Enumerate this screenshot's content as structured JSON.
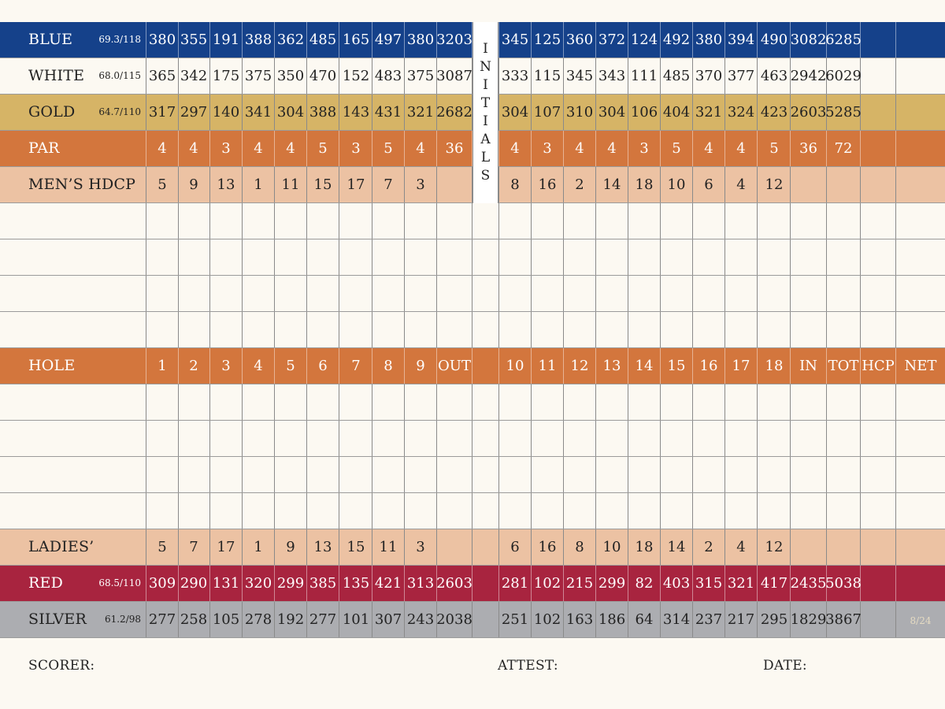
{
  "initials_label": [
    "I",
    "N",
    "I",
    "T",
    "I",
    "A",
    "L",
    "S"
  ],
  "rows": [
    {
      "key": "blue",
      "name": "BLUE",
      "rating": "69.3/118",
      "front": [
        "380",
        "355",
        "191",
        "388",
        "362",
        "485",
        "165",
        "497",
        "380"
      ],
      "out": "3203",
      "back": [
        "345",
        "125",
        "360",
        "372",
        "124",
        "492",
        "380",
        "394",
        "490"
      ],
      "in": "3082",
      "tot": "6285",
      "hcp": "",
      "net": ""
    },
    {
      "key": "white",
      "name": "WHITE",
      "rating": "68.0/115",
      "front": [
        "365",
        "342",
        "175",
        "375",
        "350",
        "470",
        "152",
        "483",
        "375"
      ],
      "out": "3087",
      "back": [
        "333",
        "115",
        "345",
        "343",
        "111",
        "485",
        "370",
        "377",
        "463"
      ],
      "in": "2942",
      "tot": "6029",
      "hcp": "",
      "net": ""
    },
    {
      "key": "gold",
      "name": "GOLD",
      "rating": "64.7/110",
      "front": [
        "317",
        "297",
        "140",
        "341",
        "304",
        "388",
        "143",
        "431",
        "321"
      ],
      "out": "2682",
      "back": [
        "304",
        "107",
        "310",
        "304",
        "106",
        "404",
        "321",
        "324",
        "423"
      ],
      "in": "2603",
      "tot": "5285",
      "hcp": "",
      "net": ""
    },
    {
      "key": "par",
      "name": "PAR",
      "rating": "",
      "front": [
        "4",
        "4",
        "3",
        "4",
        "4",
        "5",
        "3",
        "5",
        "4"
      ],
      "out": "36",
      "back": [
        "4",
        "3",
        "4",
        "4",
        "3",
        "5",
        "4",
        "4",
        "5"
      ],
      "in": "36",
      "tot": "72",
      "hcp": "",
      "net": ""
    },
    {
      "key": "hdcp",
      "name": "MEN’S HDCP",
      "rating": "",
      "front": [
        "5",
        "9",
        "13",
        "1",
        "11",
        "15",
        "17",
        "7",
        "3"
      ],
      "out": "",
      "back": [
        "8",
        "16",
        "2",
        "14",
        "18",
        "10",
        "6",
        "4",
        "12"
      ],
      "in": "",
      "tot": "",
      "hcp": "",
      "net": ""
    },
    {
      "key": "blank",
      "name": "",
      "rating": "",
      "front": [
        "",
        "",
        "",
        "",
        "",
        "",
        "",
        "",
        ""
      ],
      "out": "",
      "back": [
        "",
        "",
        "",
        "",
        "",
        "",
        "",
        "",
        ""
      ],
      "in": "",
      "tot": "",
      "hcp": "",
      "net": ""
    },
    {
      "key": "blank",
      "name": "",
      "rating": "",
      "front": [
        "",
        "",
        "",
        "",
        "",
        "",
        "",
        "",
        ""
      ],
      "out": "",
      "back": [
        "",
        "",
        "",
        "",
        "",
        "",
        "",
        "",
        ""
      ],
      "in": "",
      "tot": "",
      "hcp": "",
      "net": ""
    },
    {
      "key": "blank",
      "name": "",
      "rating": "",
      "front": [
        "",
        "",
        "",
        "",
        "",
        "",
        "",
        "",
        ""
      ],
      "out": "",
      "back": [
        "",
        "",
        "",
        "",
        "",
        "",
        "",
        "",
        ""
      ],
      "in": "",
      "tot": "",
      "hcp": "",
      "net": ""
    },
    {
      "key": "blank",
      "name": "",
      "rating": "",
      "front": [
        "",
        "",
        "",
        "",
        "",
        "",
        "",
        "",
        ""
      ],
      "out": "",
      "back": [
        "",
        "",
        "",
        "",
        "",
        "",
        "",
        "",
        ""
      ],
      "in": "",
      "tot": "",
      "hcp": "",
      "net": ""
    },
    {
      "key": "hole",
      "name": "HOLE",
      "rating": "",
      "front": [
        "1",
        "2",
        "3",
        "4",
        "5",
        "6",
        "7",
        "8",
        "9"
      ],
      "out": "OUT",
      "back": [
        "10",
        "11",
        "12",
        "13",
        "14",
        "15",
        "16",
        "17",
        "18"
      ],
      "in": "IN",
      "tot": "TOT",
      "hcp": "HCP",
      "net": "NET"
    },
    {
      "key": "blank",
      "name": "",
      "rating": "",
      "front": [
        "",
        "",
        "",
        "",
        "",
        "",
        "",
        "",
        ""
      ],
      "out": "",
      "back": [
        "",
        "",
        "",
        "",
        "",
        "",
        "",
        "",
        ""
      ],
      "in": "",
      "tot": "",
      "hcp": "",
      "net": ""
    },
    {
      "key": "blank",
      "name": "",
      "rating": "",
      "front": [
        "",
        "",
        "",
        "",
        "",
        "",
        "",
        "",
        ""
      ],
      "out": "",
      "back": [
        "",
        "",
        "",
        "",
        "",
        "",
        "",
        "",
        ""
      ],
      "in": "",
      "tot": "",
      "hcp": "",
      "net": ""
    },
    {
      "key": "blank",
      "name": "",
      "rating": "",
      "front": [
        "",
        "",
        "",
        "",
        "",
        "",
        "",
        "",
        ""
      ],
      "out": "",
      "back": [
        "",
        "",
        "",
        "",
        "",
        "",
        "",
        "",
        ""
      ],
      "in": "",
      "tot": "",
      "hcp": "",
      "net": ""
    },
    {
      "key": "blank",
      "name": "",
      "rating": "",
      "front": [
        "",
        "",
        "",
        "",
        "",
        "",
        "",
        "",
        ""
      ],
      "out": "",
      "back": [
        "",
        "",
        "",
        "",
        "",
        "",
        "",
        "",
        ""
      ],
      "in": "",
      "tot": "",
      "hcp": "",
      "net": ""
    },
    {
      "key": "hdcp",
      "name": "LADIES’ HDCP",
      "rating": "",
      "front": [
        "5",
        "7",
        "17",
        "1",
        "9",
        "13",
        "15",
        "11",
        "3"
      ],
      "out": "",
      "back": [
        "6",
        "16",
        "8",
        "10",
        "18",
        "14",
        "2",
        "4",
        "12"
      ],
      "in": "",
      "tot": "",
      "hcp": "",
      "net": ""
    },
    {
      "key": "red",
      "name": "RED",
      "rating": "68.5/110",
      "front": [
        "309",
        "290",
        "131",
        "320",
        "299",
        "385",
        "135",
        "421",
        "313"
      ],
      "out": "2603",
      "back": [
        "281",
        "102",
        "215",
        "299",
        "82",
        "403",
        "315",
        "321",
        "417"
      ],
      "in": "2435",
      "tot": "5038",
      "hcp": "",
      "net": ""
    },
    {
      "key": "silver",
      "name": "SILVER",
      "rating": "61.2/98",
      "front": [
        "277",
        "258",
        "105",
        "278",
        "192",
        "277",
        "101",
        "307",
        "243"
      ],
      "out": "2038",
      "back": [
        "251",
        "102",
        "163",
        "186",
        "64",
        "314",
        "237",
        "217",
        "295"
      ],
      "in": "1829",
      "tot": "3867",
      "hcp": "",
      "net": ""
    }
  ],
  "page_tag": "8/24",
  "signatures": {
    "scorer": "SCORER:",
    "attest": "ATTEST:",
    "date": "DATE:"
  },
  "colors": {
    "blue": "#15418a",
    "gold": "#d6b466",
    "orange": "#d3763d",
    "peach": "#ecc2a3",
    "red": "#a8243f",
    "silver": "#acadb1",
    "paper": "#fcf9f2"
  }
}
